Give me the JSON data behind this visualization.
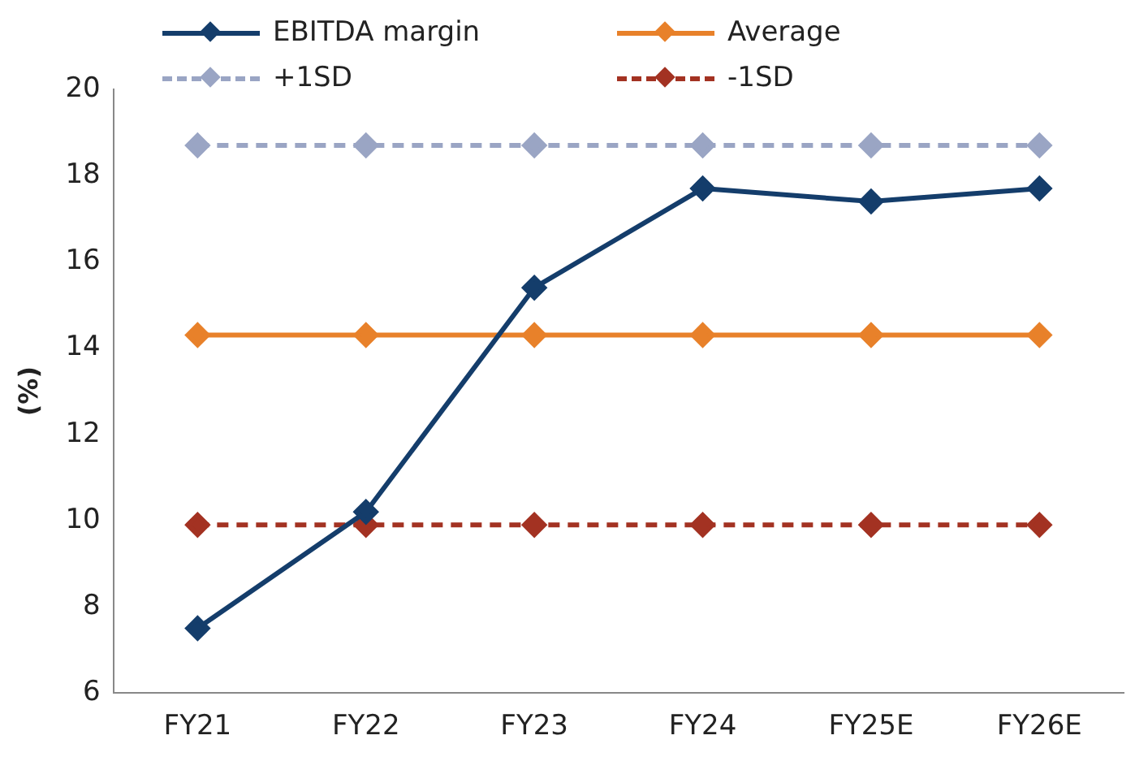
{
  "chart_data": {
    "type": "line",
    "ylabel": "(%)",
    "categories": [
      "FY21",
      "FY22",
      "FY23",
      "FY24",
      "FY25E",
      "FY26E"
    ],
    "series": [
      {
        "name": "EBITDA margin",
        "color": "#143d6b",
        "values": [
          7.5,
          10.2,
          15.4,
          17.7,
          17.4,
          17.7
        ]
      },
      {
        "name": "Average",
        "color": "#e8812a",
        "values": [
          14.3,
          14.3,
          14.3,
          14.3,
          14.3,
          14.3
        ]
      },
      {
        "name": "+1SD",
        "color": "#9aa5c4",
        "line_style": "dashed",
        "values": [
          18.7,
          18.7,
          18.7,
          18.7,
          18.7,
          18.7
        ]
      },
      {
        "name": "-1SD",
        "color": "#a33222",
        "line_style": "dashed",
        "values": [
          9.9,
          9.9,
          9.9,
          9.9,
          9.9,
          9.9
        ]
      }
    ],
    "ylim": [
      6,
      20
    ],
    "yticks": [
      6,
      8,
      10,
      12,
      14,
      16,
      18,
      20
    ],
    "grid": false,
    "legend": "top",
    "marker": "diamond",
    "line_style": "solid"
  }
}
